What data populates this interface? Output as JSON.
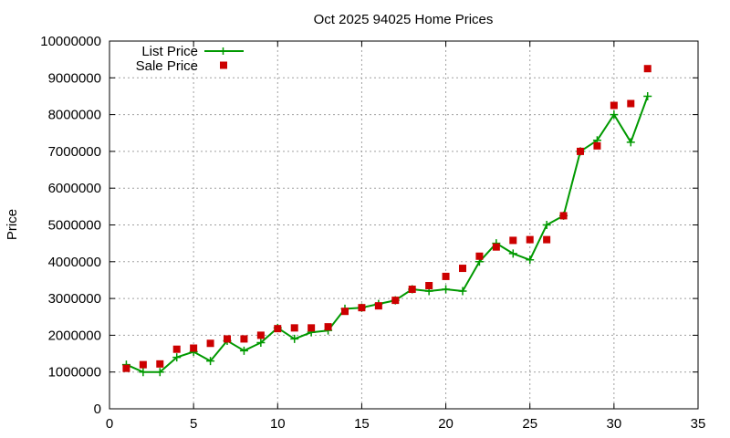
{
  "chart_data": {
    "type": "line",
    "title": "Oct 2025 94025 Home Prices",
    "xlabel": "",
    "ylabel": "Price",
    "xlim": [
      0,
      35
    ],
    "ylim": [
      0,
      10000000
    ],
    "x_ticks": [
      0,
      5,
      10,
      15,
      20,
      25,
      30,
      35
    ],
    "y_ticks": [
      0,
      1000000,
      2000000,
      3000000,
      4000000,
      5000000,
      6000000,
      7000000,
      8000000,
      9000000,
      10000000
    ],
    "grid": true,
    "legend_position": "top-left",
    "series": [
      {
        "name": "List Price",
        "style": "linespoints",
        "marker": "plus",
        "color": "#009900",
        "x": [
          1,
          2,
          3,
          4,
          5,
          6,
          7,
          8,
          9,
          10,
          11,
          12,
          13,
          14,
          15,
          16,
          17,
          18,
          19,
          20,
          21,
          22,
          23,
          24,
          25,
          26,
          27,
          28,
          29,
          30,
          31,
          32
        ],
        "y": [
          1200000,
          1000000,
          1000000,
          1400000,
          1550000,
          1300000,
          1850000,
          1580000,
          1800000,
          2200000,
          1900000,
          2080000,
          2130000,
          2720000,
          2750000,
          2850000,
          2950000,
          3250000,
          3200000,
          3250000,
          3200000,
          4000000,
          4500000,
          4220000,
          4050000,
          5000000,
          5250000,
          7000000,
          7300000,
          8000000,
          7250000,
          8500000
        ]
      },
      {
        "name": "Sale Price",
        "style": "points",
        "marker": "square",
        "color": "#cc0000",
        "x": [
          1,
          2,
          3,
          4,
          5,
          6,
          7,
          8,
          9,
          10,
          11,
          12,
          13,
          14,
          15,
          16,
          17,
          18,
          19,
          20,
          21,
          22,
          23,
          24,
          25,
          26,
          27,
          28,
          29,
          30,
          31,
          32
        ],
        "y": [
          1100000,
          1200000,
          1220000,
          1620000,
          1650000,
          1780000,
          1900000,
          1900000,
          2000000,
          2180000,
          2200000,
          2200000,
          2230000,
          2650000,
          2750000,
          2800000,
          2950000,
          3250000,
          3350000,
          3600000,
          3820000,
          4150000,
          4400000,
          4580000,
          4600000,
          4600000,
          5250000,
          7000000,
          7150000,
          8250000,
          8300000,
          9250000
        ]
      }
    ]
  }
}
